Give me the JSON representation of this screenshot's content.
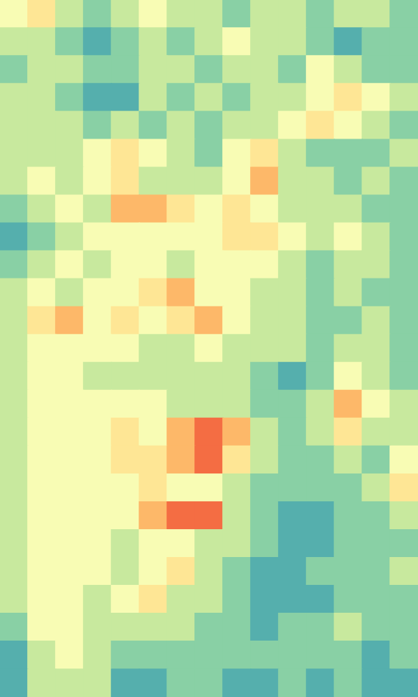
{
  "chart_data": {
    "type": "heatmap",
    "tick_labels": false,
    "zlim": [
      0,
      10
    ],
    "cells": [
      [
        6,
        7,
        5,
        4,
        5,
        6,
        5,
        5,
        4,
        5,
        5,
        4,
        5,
        5,
        4
      ],
      [
        5,
        5,
        4,
        3,
        4,
        5,
        4,
        5,
        6,
        5,
        5,
        4,
        3,
        4,
        4
      ],
      [
        4,
        5,
        5,
        4,
        4,
        5,
        5,
        4,
        5,
        5,
        4,
        6,
        5,
        4,
        4
      ],
      [
        5,
        5,
        4,
        3,
        3,
        5,
        4,
        5,
        4,
        5,
        5,
        6,
        7,
        6,
        5
      ],
      [
        5,
        5,
        5,
        4,
        5,
        4,
        5,
        4,
        5,
        5,
        6,
        7,
        6,
        5,
        4
      ],
      [
        5,
        5,
        5,
        6,
        7,
        6,
        5,
        4,
        6,
        7,
        5,
        4,
        4,
        4,
        5
      ],
      [
        5,
        6,
        5,
        6,
        7,
        5,
        5,
        5,
        6,
        8,
        5,
        5,
        4,
        5,
        4
      ],
      [
        4,
        5,
        6,
        5,
        8,
        8,
        7,
        6,
        7,
        6,
        5,
        5,
        5,
        4,
        4
      ],
      [
        3,
        4,
        5,
        6,
        6,
        6,
        6,
        6,
        7,
        7,
        6,
        5,
        6,
        5,
        4
      ],
      [
        4,
        5,
        6,
        5,
        6,
        6,
        5,
        6,
        6,
        6,
        5,
        4,
        5,
        5,
        4
      ],
      [
        5,
        6,
        5,
        6,
        6,
        7,
        8,
        6,
        6,
        5,
        5,
        4,
        5,
        4,
        4
      ],
      [
        5,
        7,
        8,
        6,
        7,
        6,
        7,
        8,
        6,
        5,
        5,
        4,
        4,
        5,
        4
      ],
      [
        5,
        6,
        6,
        6,
        6,
        5,
        5,
        6,
        5,
        5,
        5,
        4,
        5,
        5,
        4
      ],
      [
        5,
        6,
        6,
        5,
        5,
        5,
        5,
        5,
        5,
        4,
        3,
        4,
        6,
        5,
        4
      ],
      [
        5,
        6,
        6,
        6,
        6,
        6,
        5,
        5,
        5,
        4,
        4,
        5,
        8,
        6,
        5
      ],
      [
        5,
        6,
        6,
        6,
        7,
        6,
        8,
        9,
        8,
        5,
        4,
        5,
        7,
        5,
        5
      ],
      [
        5,
        6,
        6,
        6,
        7,
        7,
        8,
        9,
        7,
        5,
        4,
        4,
        5,
        4,
        6
      ],
      [
        5,
        6,
        6,
        6,
        6,
        7,
        6,
        6,
        5,
        4,
        4,
        4,
        4,
        5,
        7
      ],
      [
        5,
        6,
        6,
        6,
        6,
        8,
        9,
        9,
        5,
        4,
        3,
        3,
        4,
        4,
        5
      ],
      [
        5,
        6,
        6,
        6,
        5,
        6,
        6,
        5,
        5,
        4,
        3,
        3,
        4,
        4,
        4
      ],
      [
        5,
        6,
        6,
        6,
        5,
        6,
        7,
        5,
        4,
        3,
        3,
        4,
        4,
        4,
        5
      ],
      [
        5,
        6,
        6,
        5,
        6,
        7,
        5,
        5,
        4,
        3,
        3,
        3,
        4,
        4,
        4
      ],
      [
        4,
        6,
        6,
        5,
        5,
        5,
        5,
        4,
        4,
        3,
        4,
        4,
        5,
        4,
        4
      ],
      [
        3,
        5,
        6,
        5,
        4,
        4,
        4,
        4,
        4,
        4,
        4,
        4,
        4,
        3,
        4
      ],
      [
        3,
        5,
        5,
        5,
        3,
        3,
        4,
        4,
        3,
        3,
        4,
        3,
        4,
        3,
        3
      ]
    ]
  }
}
